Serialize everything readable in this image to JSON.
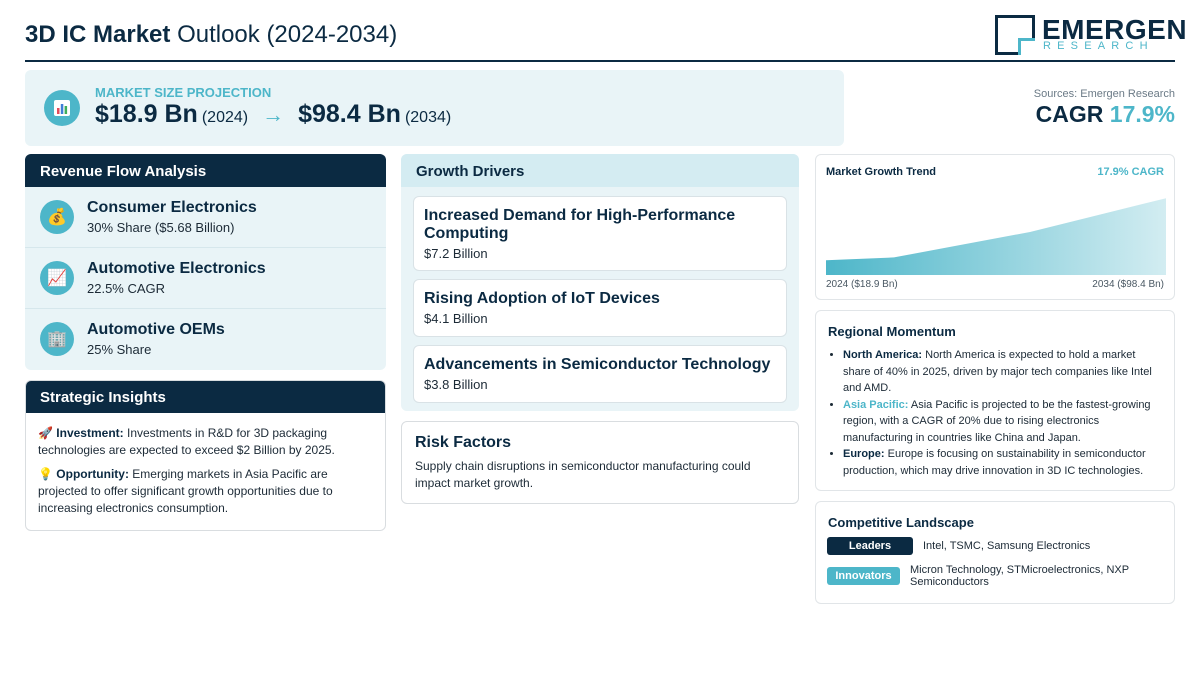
{
  "header": {
    "title_bold": "3D IC Market",
    "title_rest": "Outlook (2024-2034)",
    "logo_name": "EMERGEN",
    "logo_sub": "RESEARCH"
  },
  "projection": {
    "label": "MARKET SIZE PROJECTION",
    "start_value": "$18.9 Bn",
    "start_year": "(2024)",
    "arrow": "→",
    "end_value": "$98.4 Bn",
    "end_year": "(2034)",
    "icon": "bar-chart-icon"
  },
  "sources": "Sources: Emergen Research",
  "cagr": {
    "label": "CAGR",
    "value": "17.9%"
  },
  "revenue_flow": {
    "title": "Revenue Flow Analysis",
    "items": [
      {
        "title": "Consumer Electronics",
        "sub": "30% Share ($5.68 Billion)",
        "icon": "💰"
      },
      {
        "title": "Automotive Electronics",
        "sub": "22.5% CAGR",
        "icon": "📈"
      },
      {
        "title": "Automotive OEMs",
        "sub": "25% Share",
        "icon": "🏢"
      }
    ]
  },
  "strategic": {
    "title": "Strategic Insights",
    "items": [
      {
        "emoji": "🚀",
        "label": "Investment:",
        "text": "Investments in R&D for 3D packaging technologies are expected to exceed $2 Billion by 2025."
      },
      {
        "emoji": "💡",
        "label": "Opportunity:",
        "text": "Emerging markets in Asia Pacific are projected to offer significant growth opportunities due to increasing electronics consumption."
      }
    ]
  },
  "growth_drivers": {
    "title": "Growth Drivers",
    "items": [
      {
        "title": "Increased Demand for High-Performance Computing",
        "value": "$7.2 Billion"
      },
      {
        "title": "Rising Adoption of IoT Devices",
        "value": "$4.1 Billion"
      },
      {
        "title": "Advancements in Semiconductor Technology",
        "value": "$3.8 Billion"
      }
    ]
  },
  "risk": {
    "title": "Risk Factors",
    "text": "Supply chain disruptions in semiconductor manufacturing could impact market growth."
  },
  "trend": {
    "title": "Market Growth Trend",
    "cagr": "17.9% CAGR",
    "left_label": "2024 ($18.9 Bn)",
    "right_label": "2034 ($98.4 Bn)",
    "color": "#4db6c9"
  },
  "chart_data": {
    "type": "area",
    "x": [
      2024,
      2026,
      2030,
      2034
    ],
    "values": [
      18.9,
      22.5,
      55.0,
      98.4
    ]
  },
  "regional": {
    "title": "Regional Momentum",
    "items": [
      {
        "label": "North America:",
        "text": "North America is expected to hold a market share of 40% in 2025, driven by major tech companies like Intel and AMD.",
        "accent": false
      },
      {
        "label": "Asia Pacific:",
        "text": "Asia Pacific is projected to be the fastest-growing region, with a CAGR of 20% due to rising electronics manufacturing in countries like China and Japan.",
        "accent": true
      },
      {
        "label": "Europe:",
        "text": "Europe is focusing on sustainability in semiconductor production, which may drive innovation in 3D IC technologies.",
        "accent": false
      }
    ]
  },
  "competitive": {
    "title": "Competitive Landscape",
    "leaders_label": "Leaders",
    "leaders": "Intel, TSMC, Samsung Electronics",
    "innovators_label": "Innovators",
    "innovators": "Micron Technology, STMicroelectronics, NXP Semiconductors"
  },
  "colors": {
    "navy": "#0b2a42",
    "accent": "#4db6c9",
    "panel_bg": "#e9f4f7"
  }
}
